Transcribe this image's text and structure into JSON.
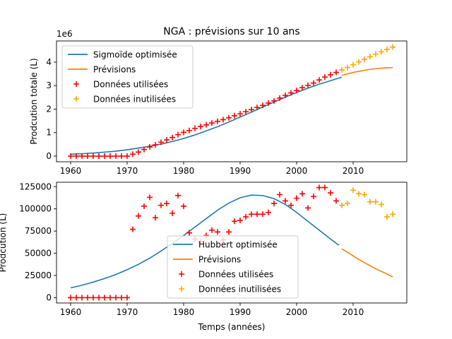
{
  "colors": {
    "fit": "#1f77b4",
    "forecast": "#ff7f0e",
    "used": "#ff0000",
    "unused": "#ffa500",
    "axis": "#000000",
    "background": "#ffffff"
  },
  "chart_data": [
    {
      "type": "line",
      "title": "NGA : prévisions sur 10 ans",
      "xlabel": "",
      "ylabel": "Prodcution totale (L)",
      "offset_text": "1e6",
      "xlim": [
        1957.5,
        2019.5
      ],
      "ylim": [
        -0.24,
        4.9
      ],
      "scale": 1000000,
      "grid": false,
      "legend_position": "upper-left",
      "xticks": [
        1960,
        1970,
        1980,
        1990,
        2000,
        2010
      ],
      "xtick_labels": [
        "1960",
        "1970",
        "1980",
        "1990",
        "2000",
        "2010"
      ],
      "yticks": [
        0,
        1,
        2,
        3,
        4
      ],
      "ytick_labels": [
        "0",
        "1",
        "2",
        "3",
        "4"
      ],
      "series": [
        {
          "name": "Sigmoïde optimisée",
          "kind": "line",
          "color": "#1f77b4",
          "x": [
            1960,
            1962,
            1964,
            1966,
            1968,
            1970,
            1972,
            1974,
            1976,
            1978,
            1980,
            1982,
            1984,
            1986,
            1988,
            1990,
            1992,
            1994,
            1996,
            1998,
            2000,
            2002,
            2004,
            2006,
            2008
          ],
          "y": [
            0.08,
            0.1,
            0.13,
            0.17,
            0.21,
            0.27,
            0.34,
            0.42,
            0.51,
            0.62,
            0.75,
            0.9,
            1.07,
            1.25,
            1.45,
            1.66,
            1.87,
            2.09,
            2.3,
            2.51,
            2.71,
            2.89,
            3.06,
            3.21,
            3.36
          ]
        },
        {
          "name": "Prévisions",
          "kind": "line",
          "color": "#ff7f0e",
          "x": [
            2008,
            2009,
            2010,
            2011,
            2012,
            2013,
            2014,
            2015,
            2016,
            2017
          ],
          "y": [
            3.43,
            3.5,
            3.56,
            3.61,
            3.65,
            3.69,
            3.72,
            3.74,
            3.76,
            3.77
          ]
        },
        {
          "name": "Données utilisées",
          "kind": "scatter",
          "marker": "+",
          "color": "#ff0000",
          "x": [
            1960,
            1961,
            1962,
            1963,
            1964,
            1965,
            1966,
            1967,
            1968,
            1969,
            1970,
            1971,
            1972,
            1973,
            1974,
            1975,
            1976,
            1977,
            1978,
            1979,
            1980,
            1981,
            1982,
            1983,
            1984,
            1985,
            1986,
            1987,
            1988,
            1989,
            1990,
            1991,
            1992,
            1993,
            1994,
            1995,
            1996,
            1997,
            1998,
            1999,
            2000,
            2001,
            2002,
            2003,
            2004,
            2005,
            2006,
            2007
          ],
          "y": [
            0,
            0,
            0,
            0,
            0,
            0,
            0,
            0,
            0,
            0,
            0,
            0.08,
            0.17,
            0.28,
            0.39,
            0.48,
            0.59,
            0.69,
            0.79,
            0.91,
            1.01,
            1.09,
            1.18,
            1.26,
            1.33,
            1.41,
            1.48,
            1.55,
            1.63,
            1.72,
            1.8,
            1.89,
            1.98,
            2.07,
            2.16,
            2.26,
            2.35,
            2.47,
            2.58,
            2.69,
            2.79,
            2.91,
            3.01,
            3.11,
            3.24,
            3.36,
            3.46,
            3.56
          ]
        },
        {
          "name": "Données inutilisées",
          "kind": "scatter",
          "marker": "+",
          "color": "#ffa500",
          "x": [
            2008,
            2009,
            2010,
            2011,
            2012,
            2013,
            2014,
            2015,
            2016,
            2017
          ],
          "y": [
            3.67,
            3.77,
            3.89,
            4.01,
            4.12,
            4.23,
            4.34,
            4.44,
            4.54,
            4.64
          ]
        }
      ]
    },
    {
      "type": "line",
      "title": "",
      "xlabel": "Temps (années)",
      "ylabel": "Prodcution (L)",
      "offset_text": "",
      "xlim": [
        1957.5,
        2019.5
      ],
      "ylim": [
        -6000,
        130000
      ],
      "scale": 1,
      "grid": false,
      "legend_position": "lower-center",
      "xticks": [
        1960,
        1970,
        1980,
        1990,
        2000,
        2010
      ],
      "xtick_labels": [
        "1960",
        "1970",
        "1980",
        "1990",
        "2000",
        "2010"
      ],
      "yticks": [
        0,
        25000,
        50000,
        75000,
        100000,
        125000
      ],
      "ytick_labels": [
        "0",
        "25000",
        "50000",
        "75000",
        "100000",
        "125000"
      ],
      "series": [
        {
          "name": "Hubbert optimisée",
          "kind": "line",
          "color": "#1f77b4",
          "x": [
            1960,
            1962,
            1964,
            1966,
            1968,
            1970,
            1972,
            1974,
            1976,
            1978,
            1980,
            1982,
            1984,
            1986,
            1988,
            1990,
            1992,
            1994,
            1996,
            1998,
            2000,
            2002,
            2004,
            2006,
            2007.5
          ],
          "y": [
            11000,
            14000,
            17500,
            21500,
            26000,
            31500,
            37500,
            44500,
            52500,
            61000,
            70000,
            79500,
            89000,
            98500,
            106500,
            112500,
            115500,
            115000,
            111500,
            105000,
            96000,
            86000,
            76000,
            66000,
            59000
          ]
        },
        {
          "name": "Prévisions",
          "kind": "line",
          "color": "#ff7f0e",
          "x": [
            2008,
            2009,
            2010,
            2011,
            2012,
            2013,
            2014,
            2015,
            2016,
            2017
          ],
          "y": [
            55000,
            51000,
            47000,
            43000,
            39500,
            36000,
            32500,
            29500,
            26500,
            23500
          ]
        },
        {
          "name": "Données utilisées",
          "kind": "scatter",
          "marker": "+",
          "color": "#ff0000",
          "x": [
            1960,
            1961,
            1962,
            1963,
            1964,
            1965,
            1966,
            1967,
            1968,
            1969,
            1970,
            1971,
            1972,
            1973,
            1974,
            1975,
            1976,
            1977,
            1978,
            1979,
            1980,
            1981,
            1982,
            1983,
            1984,
            1985,
            1986,
            1987,
            1988,
            1989,
            1990,
            1991,
            1992,
            1993,
            1994,
            1995,
            1996,
            1997,
            1998,
            1999,
            2000,
            2001,
            2002,
            2003,
            2004,
            2005,
            2006,
            2007
          ],
          "y": [
            0,
            0,
            0,
            0,
            0,
            0,
            0,
            0,
            0,
            0,
            0,
            77000,
            92000,
            103000,
            113000,
            90000,
            104000,
            106000,
            95000,
            115000,
            103000,
            73000,
            66000,
            63000,
            70000,
            76000,
            74000,
            65000,
            74000,
            86000,
            87000,
            91000,
            94000,
            94000,
            94000,
            96000,
            106000,
            116000,
            109000,
            104000,
            112000,
            117000,
            101000,
            114000,
            124000,
            124000,
            118000,
            109000
          ]
        },
        {
          "name": "Données inutilisées",
          "kind": "scatter",
          "marker": "+",
          "color": "#ffa500",
          "x": [
            2008,
            2009,
            2010,
            2011,
            2012,
            2013,
            2014,
            2015,
            2016,
            2017
          ],
          "y": [
            104000,
            106000,
            121000,
            117000,
            116000,
            108000,
            108000,
            105000,
            91000,
            94000
          ]
        }
      ]
    }
  ]
}
